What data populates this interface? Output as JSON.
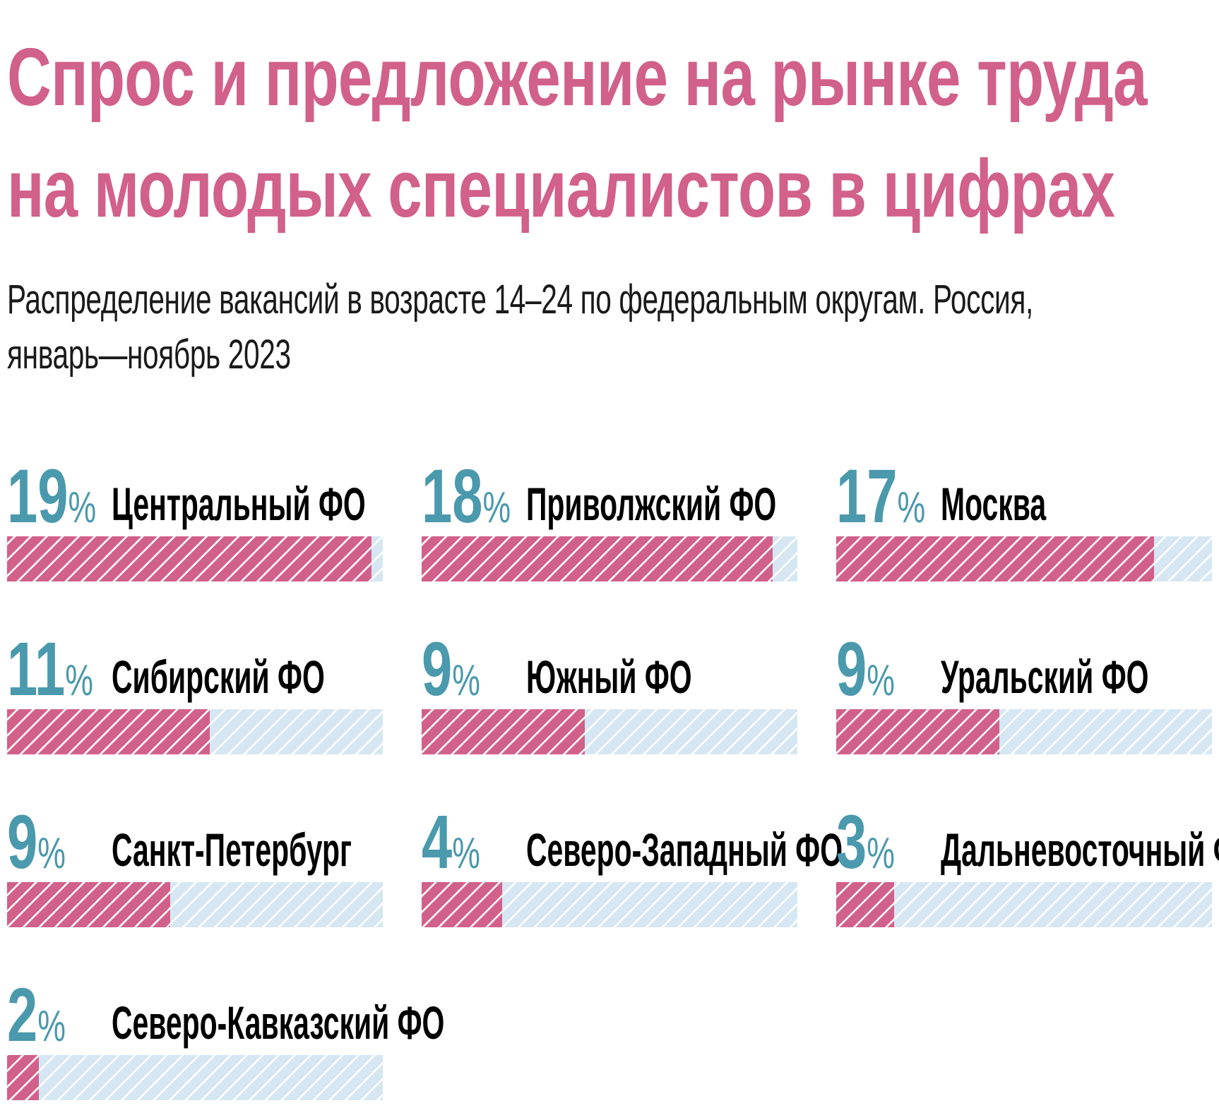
{
  "title": {
    "line1": "Спрос и предложение на рынке труда",
    "line2": "на молодых специалистов в цифрах"
  },
  "subtitle": {
    "line1": "Распределение вакансий в возрасте 14–24 по федеральным округам. Россия,",
    "line2": "январь—ноябрь 2023"
  },
  "colors": {
    "title": "#d1608a",
    "bar_fill": "#d1608a",
    "bar_track": "#d6e7f3",
    "percent": "#4a99ad",
    "label": "#000000"
  },
  "chart_data": {
    "type": "bar",
    "unit": "%",
    "scale_max": 20,
    "categories": [
      "Центральный ФО",
      "Приволжский ФО",
      "Москва",
      "Сибирский ФО",
      "Южный ФО",
      "Уральский ФО",
      "Санкт-Петербург",
      "Северо-Западный ФО",
      "Дальневосточный ФО",
      "Северо-Кавказский ФО"
    ],
    "values": [
      19,
      18,
      17,
      11,
      9,
      9,
      9,
      4,
      3,
      2
    ],
    "bar_fill_fraction": [
      0.97,
      0.935,
      0.845,
      0.54,
      0.435,
      0.435,
      0.435,
      0.215,
      0.155,
      0.085
    ]
  }
}
